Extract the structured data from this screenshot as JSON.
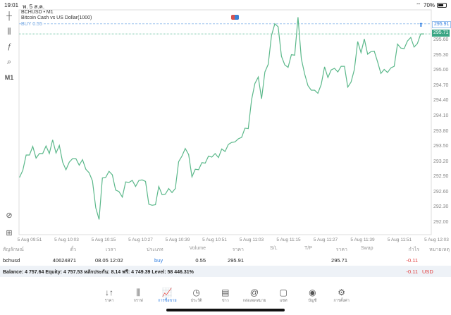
{
  "status_bar": {
    "time": "19:01",
    "date": "พ. 5 ส.ค.",
    "battery": "70%",
    "wifi_icon": "wifi-icon",
    "battery_icon": "battery-icon"
  },
  "chart": {
    "symbol": "BCHUSD",
    "timeframe": "M1",
    "symbol_line": "BCHUSD • M1",
    "description": "Bitcoin Cash vs US Dollar(1000)",
    "order_label": "BUY 0.55",
    "open_price_label": "295.91",
    "current_price_label": "295.71",
    "line_color": "#5bb88a",
    "ask_color": "#2f7de1",
    "timeframe_button": "M1",
    "price_ticks": [
      "295.60",
      "295.30",
      "295.00",
      "294.70",
      "294.40",
      "294.10",
      "293.80",
      "293.50",
      "293.20",
      "292.90",
      "292.60",
      "292.30",
      "292.00"
    ],
    "time_ticks": [
      "5 Aug 09:51",
      "5 Aug 10:03",
      "5 Aug 10:15",
      "5 Aug 10:27",
      "5 Aug 10:39",
      "5 Aug 10:51",
      "5 Aug 11:03",
      "5 Aug 11:15",
      "5 Aug 11:27",
      "5 Aug 11:39",
      "5 Aug 11:51",
      "5 Aug 12:03"
    ],
    "price_series": [
      292.88,
      293.02,
      293.32,
      293.32,
      293.49,
      293.26,
      293.35,
      293.35,
      293.5,
      293.35,
      293.62,
      293.36,
      293.51,
      293.18,
      293.03,
      293.18,
      293.25,
      293.25,
      293.12,
      293.23,
      293.04,
      292.97,
      292.81,
      292.28,
      292.05,
      292.87,
      292.88,
      293.0,
      292.93,
      292.63,
      292.6,
      292.49,
      292.79,
      292.78,
      292.82,
      292.7,
      292.82,
      292.83,
      292.8,
      292.35,
      292.33,
      292.34,
      292.7,
      292.54,
      292.55,
      292.66,
      292.58,
      292.66,
      293.19,
      293.3,
      293.45,
      293.33,
      292.89,
      293.04,
      293.03,
      293.17,
      293.16,
      293.3,
      293.28,
      293.35,
      293.27,
      293.44,
      293.39,
      293.53,
      293.57,
      293.58,
      293.64,
      293.67,
      293.85,
      293.84,
      294.41,
      294.73,
      294.86,
      294.43,
      294.96,
      295.11,
      295.68,
      295.91,
      295.85,
      295.27,
      295.1,
      295.05,
      295.3,
      295.29,
      296.04,
      295.22,
      294.92,
      294.69,
      294.6,
      294.6,
      294.54,
      294.71,
      295.06,
      294.85,
      295.0,
      295.03,
      294.96,
      295.07,
      295.07,
      294.66,
      294.76,
      295.01,
      295.56,
      295.34,
      295.61,
      295.31,
      295.36,
      295.37,
      295.16,
      294.93,
      295.01,
      294.95,
      295.04,
      295.07,
      295.51,
      295.43,
      295.42,
      295.57,
      295.64,
      295.45,
      295.52,
      295.71,
      295.71
    ]
  },
  "left_toolbar": [
    "crosshair-icon",
    "indicators-icon",
    "function-icon",
    "objects-icon"
  ],
  "positions": {
    "headers": [
      "สัญลักษณ์",
      "ตั๋ว",
      "เวลา",
      "ประเภท",
      "Volume",
      "ราคา",
      "S/L",
      "T/P",
      "ราคา",
      "Swap",
      "กำไร",
      "หมายเหตุ"
    ],
    "rows": [
      {
        "symbol": "bchusd",
        "ticket": "40624871",
        "time": "08.05 12:02",
        "type": "buy",
        "volume": "0.55",
        "open_price": "295.91",
        "sl": "",
        "tp": "",
        "price": "295.71",
        "swap": "",
        "profit": "-0.11",
        "comment": ""
      }
    ],
    "summary": "Balance: 4 757.64 Equity: 4 757.53 หลักประกัน: 8.14 ฟรี: 4 749.39 Level: 58 446.31%",
    "total_profit": "-0.11",
    "currency": "USD"
  },
  "tabs": [
    {
      "label": "ราคา",
      "icon": "↓↑"
    },
    {
      "label": "กราฟ",
      "icon": "⫼"
    },
    {
      "label": "การซื้อขาย",
      "icon": "📈",
      "active": true
    },
    {
      "label": "ประวัติ",
      "icon": "◷"
    },
    {
      "label": "ข่าว",
      "icon": "▤"
    },
    {
      "label": "กล่องจดหมาย",
      "icon": "@"
    },
    {
      "label": "แชท",
      "icon": "▢"
    },
    {
      "label": "บัญชี",
      "icon": "◉"
    },
    {
      "label": "การตั้งค่า",
      "icon": "⚙"
    }
  ]
}
